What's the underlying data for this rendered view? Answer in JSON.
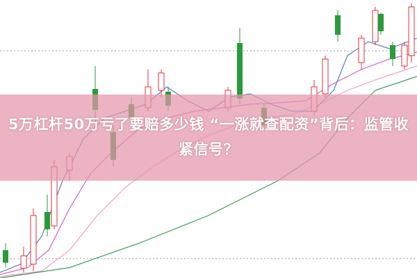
{
  "headline": "5万杠杆50万亏了要赔多少钱 “一涨就查配资”背后：监管收紧信号？"
}
